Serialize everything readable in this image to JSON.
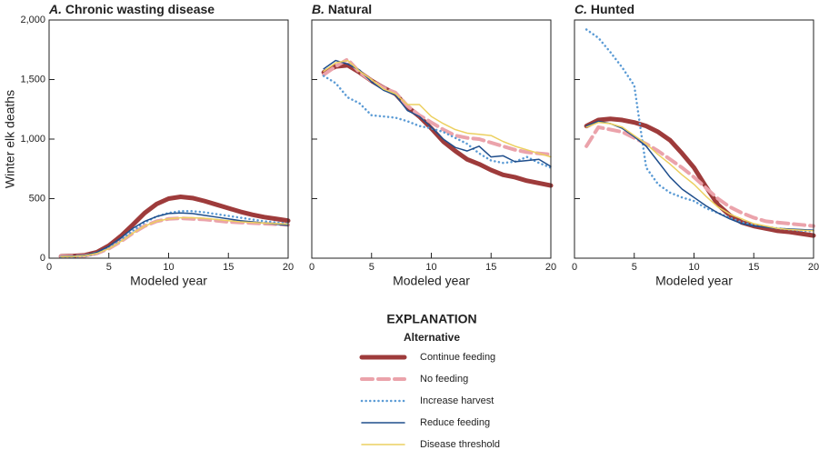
{
  "legend": {
    "title": "EXPLANATION",
    "subtitle": "Alternative"
  },
  "chart_data": [
    {
      "type": "line",
      "panel": "A.",
      "title": "Chronic wasting disease",
      "xlabel": "Modeled year",
      "ylabel": "Winter elk deaths",
      "xlim": [
        0,
        20
      ],
      "xticks": [
        0,
        5,
        10,
        15,
        20
      ],
      "ylim": [
        0,
        2000
      ],
      "yticks": [
        0,
        500,
        {
          "value": 1000,
          "label": "1,000"
        },
        {
          "value": 1500,
          "label": "1,500"
        },
        {
          "value": 2000,
          "label": "2,000"
        }
      ],
      "ytick_labels": true,
      "x": [
        1,
        2,
        3,
        4,
        5,
        6,
        7,
        8,
        9,
        10,
        11,
        12,
        13,
        14,
        15,
        16,
        17,
        18,
        19,
        20
      ],
      "series": [
        {
          "name": "Continue feeding",
          "color": "#9e3b3b",
          "style": "solid",
          "linewidth": 5,
          "values": [
            15,
            18,
            25,
            50,
            105,
            185,
            280,
            380,
            455,
            500,
            515,
            505,
            480,
            450,
            420,
            390,
            365,
            345,
            330,
            315
          ]
        },
        {
          "name": "No feeding",
          "color": "#eba3ab",
          "style": "dashed",
          "linewidth": 4,
          "values": [
            15,
            15,
            20,
            40,
            80,
            140,
            210,
            270,
            310,
            330,
            335,
            330,
            325,
            315,
            305,
            300,
            295,
            290,
            285,
            280
          ]
        },
        {
          "name": "Increase harvest",
          "color": "#5b9bd5",
          "style": "dotted",
          "linewidth": 2.5,
          "values": [
            10,
            12,
            18,
            40,
            85,
            150,
            230,
            300,
            350,
            380,
            395,
            395,
            385,
            370,
            355,
            340,
            325,
            310,
            300,
            290
          ]
        },
        {
          "name": "Reduce feeding",
          "color": "#1f4e8c",
          "style": "solid",
          "linewidth": 1.5,
          "values": [
            15,
            18,
            25,
            50,
            100,
            170,
            250,
            310,
            350,
            375,
            380,
            375,
            360,
            345,
            330,
            315,
            305,
            295,
            285,
            275
          ]
        },
        {
          "name": "Disease threshold",
          "color": "#ecd060",
          "style": "solid",
          "linewidth": 1.5,
          "values": [
            12,
            14,
            20,
            40,
            80,
            140,
            210,
            270,
            310,
            330,
            340,
            340,
            335,
            325,
            315,
            305,
            300,
            295,
            290,
            285
          ]
        }
      ]
    },
    {
      "type": "line",
      "panel": "B.",
      "title": "Natural",
      "xlabel": "Modeled year",
      "xlim": [
        0,
        20
      ],
      "xticks": [
        0,
        5,
        10,
        15,
        20
      ],
      "ylim": [
        0,
        2000
      ],
      "yticks": [
        0,
        500,
        1000,
        1500,
        2000
      ],
      "ytick_labels": false,
      "x": [
        1,
        2,
        3,
        4,
        5,
        6,
        7,
        8,
        9,
        10,
        11,
        12,
        13,
        14,
        15,
        16,
        17,
        18,
        19,
        20
      ],
      "series": [
        {
          "color": "#9e3b3b",
          "style": "solid",
          "linewidth": 5,
          "values": [
            1560,
            1610,
            1620,
            1560,
            1490,
            1430,
            1380,
            1270,
            1190,
            1090,
            980,
            900,
            830,
            790,
            740,
            700,
            680,
            650,
            630,
            610
          ]
        },
        {
          "color": "#eba3ab",
          "style": "dashed",
          "linewidth": 4,
          "values": [
            1540,
            1610,
            1670,
            1560,
            1490,
            1430,
            1390,
            1280,
            1200,
            1140,
            1080,
            1030,
            1010,
            1000,
            970,
            940,
            910,
            890,
            880,
            870
          ]
        },
        {
          "color": "#5b9bd5",
          "style": "dotted",
          "linewidth": 2.5,
          "values": [
            1530,
            1470,
            1350,
            1300,
            1200,
            1190,
            1180,
            1150,
            1110,
            1090,
            1060,
            1010,
            960,
            880,
            820,
            800,
            810,
            850,
            800,
            760
          ]
        },
        {
          "color": "#1f4e8c",
          "style": "solid",
          "linewidth": 1.5,
          "values": [
            1590,
            1660,
            1630,
            1580,
            1480,
            1410,
            1370,
            1240,
            1190,
            1100,
            1000,
            930,
            900,
            940,
            850,
            860,
            810,
            820,
            830,
            770
          ]
        },
        {
          "color": "#ecd060",
          "style": "solid",
          "linewidth": 1.5,
          "values": [
            1570,
            1640,
            1660,
            1570,
            1500,
            1420,
            1380,
            1290,
            1290,
            1190,
            1130,
            1080,
            1050,
            1040,
            1030,
            980,
            940,
            910,
            880,
            850
          ]
        }
      ]
    },
    {
      "type": "line",
      "panel": "C.",
      "title": "Hunted",
      "xlabel": "Modeled year",
      "xlim": [
        0,
        20
      ],
      "xticks": [
        0,
        5,
        10,
        15,
        20
      ],
      "ylim": [
        0,
        2000
      ],
      "yticks": [
        0,
        500,
        1000,
        1500,
        2000
      ],
      "ytick_labels": false,
      "x": [
        1,
        2,
        3,
        4,
        5,
        6,
        7,
        8,
        9,
        10,
        11,
        12,
        13,
        14,
        15,
        16,
        17,
        18,
        19,
        20
      ],
      "series": [
        {
          "color": "#9e3b3b",
          "style": "solid",
          "linewidth": 5,
          "values": [
            1110,
            1160,
            1170,
            1160,
            1140,
            1110,
            1060,
            990,
            880,
            760,
            600,
            450,
            360,
            300,
            270,
            250,
            230,
            220,
            205,
            190
          ]
        },
        {
          "color": "#eba3ab",
          "style": "dashed",
          "linewidth": 4,
          "values": [
            940,
            1100,
            1080,
            1060,
            1010,
            960,
            900,
            830,
            760,
            680,
            590,
            500,
            430,
            380,
            340,
            310,
            300,
            290,
            280,
            270
          ]
        },
        {
          "color": "#5b9bd5",
          "style": "dotted",
          "linewidth": 2.5,
          "values": [
            1920,
            1850,
            1730,
            1600,
            1450,
            760,
            620,
            550,
            510,
            480,
            420,
            380,
            340,
            300,
            280,
            265,
            250,
            240,
            230,
            225
          ]
        },
        {
          "color": "#1f4e8c",
          "style": "solid",
          "linewidth": 1.5,
          "values": [
            1110,
            1150,
            1130,
            1090,
            1020,
            940,
            810,
            680,
            580,
            510,
            440,
            380,
            330,
            290,
            270,
            260,
            250,
            245,
            240,
            235
          ]
        },
        {
          "color": "#ecd060",
          "style": "solid",
          "linewidth": 1.5,
          "values": [
            1100,
            1140,
            1130,
            1100,
            1030,
            960,
            870,
            790,
            700,
            620,
            520,
            430,
            370,
            330,
            290,
            270,
            250,
            240,
            235,
            230
          ]
        }
      ]
    }
  ]
}
